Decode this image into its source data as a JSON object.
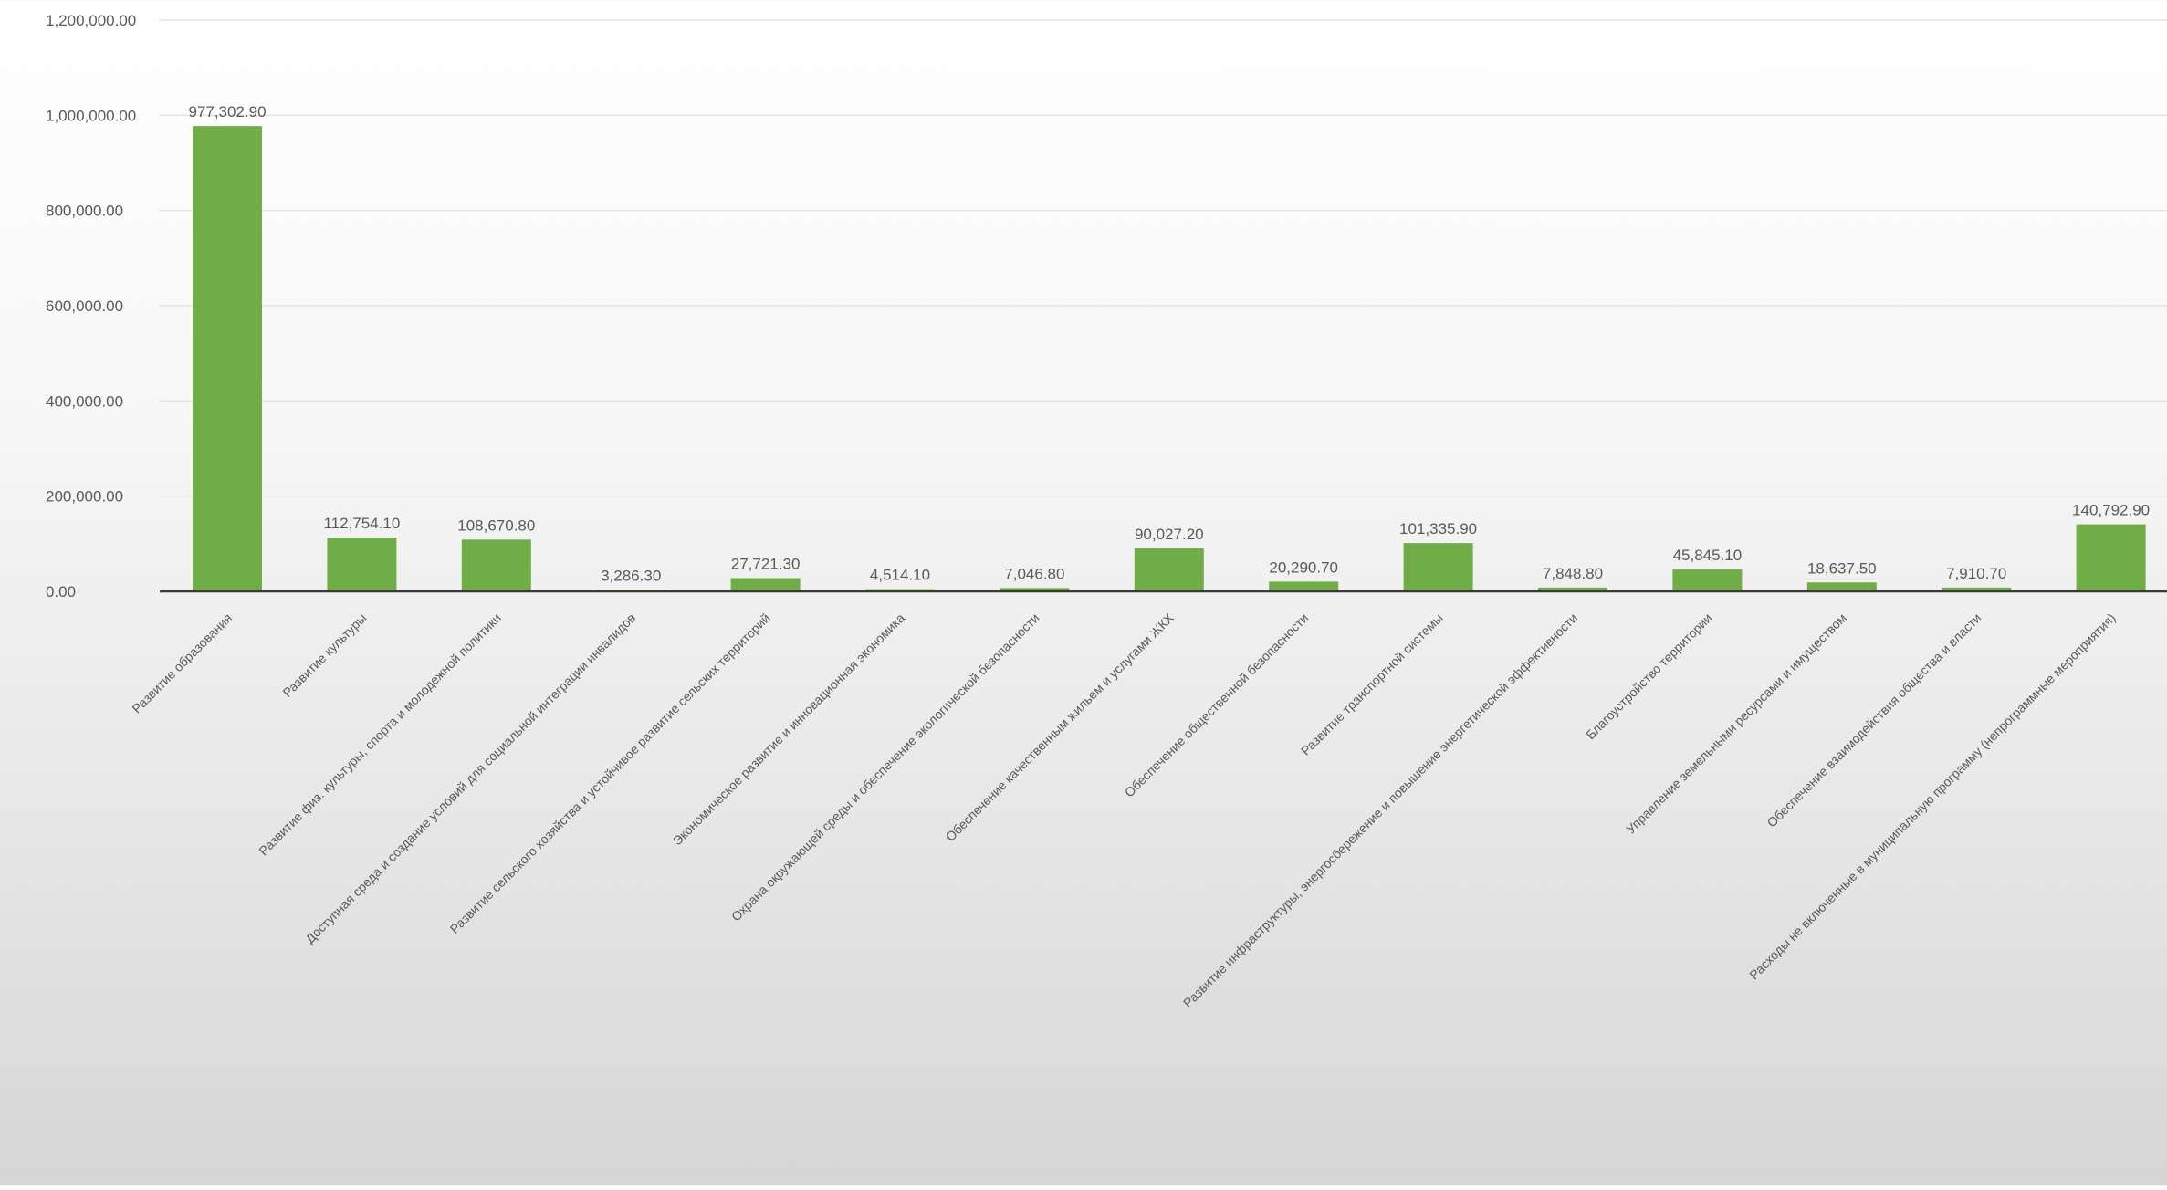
{
  "chart_data": {
    "type": "bar",
    "title": "",
    "xlabel": "",
    "ylabel": "",
    "ylim": [
      0,
      1200000
    ],
    "yticks": [
      0,
      200000,
      400000,
      600000,
      800000,
      1000000,
      1200000
    ],
    "ytick_labels": [
      "0.00",
      "200,000.00",
      "400,000.00",
      "600,000.00",
      "800,000.00",
      "1,000,000.00",
      "1,200,000.00"
    ],
    "grid": true,
    "legend": "none",
    "bar_color": "#70ad47",
    "categories": [
      "Развитие образования",
      "Развитие культуры",
      "Развитие физ. культуры, спорта и молодежной политики",
      "Доступная среда и создание условий для социальной интеграции инвалидов",
      "Развитие сельского хозяйства и устойчивое развитие сельских территорий",
      "Экономическое развитие и инновационная экономика",
      "Охрана окружающей среды и обеспечение экологической безопасности",
      "Обеспечение качественным жильем и услугами ЖКХ",
      "Обеспечение общественной безопасности",
      "Развитие транспортной системы",
      "Развитие инфраструктуры, энергосбережение и повышение энергетической эффективности",
      "Благоустройство территории",
      "Управление земельными ресурсами и имуществом",
      "Обеспечение взаимодействия общества и власти",
      "Расходы не включенные в муниципальную программу (непрограммные мероприятия)"
    ],
    "values": [
      977302.9,
      112754.1,
      108670.8,
      3286.3,
      27721.3,
      4514.1,
      7046.8,
      90027.2,
      20290.7,
      101335.9,
      7848.8,
      45845.1,
      18637.5,
      7910.7,
      140792.9
    ],
    "value_labels": [
      "977,302.90",
      "112,754.10",
      "108,670.80",
      "3,286.30",
      "27,721.30",
      "4,514.10",
      "7,046.80",
      "90,027.20",
      "20,290.70",
      "101,335.90",
      "7,848.80",
      "45,845.10",
      "18,637.50",
      "7,910.70",
      "140,792.90"
    ]
  }
}
